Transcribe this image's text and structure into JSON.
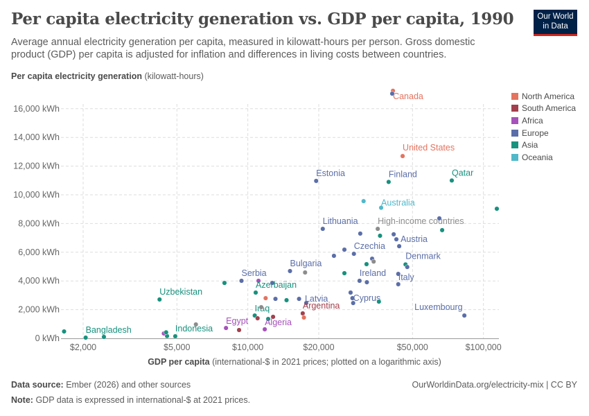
{
  "header": {
    "title": "Per capita electricity generation vs. GDP per capita, 1990",
    "subtitle": "Average annual electricity generation per capita, measured in kilowatt-hours per person. Gross domestic product (GDP) per capita is adjusted for inflation and differences in living costs between countries.",
    "logo": "Our World in Data"
  },
  "footer": {
    "source_label": "Data source:",
    "source": "Ember (2026) and other sources",
    "url": "OurWorldinData.org/electricity-mix | CC BY",
    "note_label": "Note:",
    "note": "GDP data is expressed in international-$ at 2021 prices."
  },
  "colors": {
    "North America": "#e4735f",
    "South America": "#a2404d",
    "Africa": "#a652ba",
    "Europe": "#5b6ea8",
    "Asia": "#18917e",
    "Oceania": "#50b8c9",
    "Other": "#8c8c8c"
  },
  "chart_data": {
    "type": "scatter",
    "title": "Per capita electricity generation vs. GDP per capita, 1990",
    "ylabel_bold": "Per capita electricity generation",
    "ylabel_unit": "(kilowatt-hours)",
    "xlabel_bold": "GDP per capita",
    "xlabel_unit": "(international-$ in 2021 prices; plotted on a logarithmic axis)",
    "xscale": "log",
    "xlim": [
      1500,
      120000
    ],
    "ylim": [
      0,
      17000
    ],
    "grid": true,
    "legend_position": "right",
    "xticks": [
      {
        "v": 2000,
        "label": "$2,000"
      },
      {
        "v": 5000,
        "label": "$5,000"
      },
      {
        "v": 10000,
        "label": "$10,000"
      },
      {
        "v": 20000,
        "label": "$20,000"
      },
      {
        "v": 50000,
        "label": "$50,000"
      },
      {
        "v": 100000,
        "label": "$100,000"
      }
    ],
    "yticks": [
      {
        "v": 0,
        "label": "0 kWh"
      },
      {
        "v": 2000,
        "label": "2,000 kWh"
      },
      {
        "v": 4000,
        "label": "4,000 kWh"
      },
      {
        "v": 6000,
        "label": "6,000 kWh"
      },
      {
        "v": 8000,
        "label": "8,000 kWh"
      },
      {
        "v": 10000,
        "label": "10,000 kWh"
      },
      {
        "v": 12000,
        "label": "12,000 kWh"
      },
      {
        "v": 14000,
        "label": "14,000 kWh"
      },
      {
        "v": 16000,
        "label": "16,000 kWh"
      }
    ],
    "legend": [
      "North America",
      "South America",
      "Africa",
      "Europe",
      "Asia",
      "Oceania"
    ],
    "points": [
      {
        "x": 41300,
        "y": 17250,
        "r": "North America",
        "label": "Canada"
      },
      {
        "x": 41000,
        "y": 17050,
        "r": "Europe"
      },
      {
        "x": 45400,
        "y": 12700,
        "r": "North America",
        "label": "United States"
      },
      {
        "x": 19500,
        "y": 10970,
        "r": "Europe",
        "label": "Estonia"
      },
      {
        "x": 39600,
        "y": 10900,
        "r": "Asia",
        "label": "Finland",
        "lc": "Europe"
      },
      {
        "x": 73400,
        "y": 11000,
        "r": "Asia",
        "label": "Qatar"
      },
      {
        "x": 114000,
        "y": 9030,
        "r": "Asia"
      },
      {
        "x": 36800,
        "y": 9100,
        "r": "Oceania",
        "label": "Australia"
      },
      {
        "x": 31000,
        "y": 9560,
        "r": "Oceania"
      },
      {
        "x": 20800,
        "y": 7630,
        "r": "Europe",
        "label": "Lithuania"
      },
      {
        "x": 35600,
        "y": 7630,
        "r": "Other",
        "label": "High-income countries"
      },
      {
        "x": 65000,
        "y": 8360,
        "r": "Europe"
      },
      {
        "x": 66800,
        "y": 7540,
        "r": "Asia"
      },
      {
        "x": 30000,
        "y": 7300,
        "r": "Europe"
      },
      {
        "x": 36400,
        "y": 7150,
        "r": "Asia"
      },
      {
        "x": 41600,
        "y": 7250,
        "r": "Europe"
      },
      {
        "x": 42700,
        "y": 6900,
        "r": "Europe"
      },
      {
        "x": 43900,
        "y": 6420,
        "r": "Europe",
        "label": "Austria"
      },
      {
        "x": 28200,
        "y": 5890,
        "r": "Europe",
        "label": "Czechia"
      },
      {
        "x": 25700,
        "y": 6180,
        "r": "Europe"
      },
      {
        "x": 23200,
        "y": 5750,
        "r": "Europe"
      },
      {
        "x": 33700,
        "y": 5550,
        "r": "Europe"
      },
      {
        "x": 34200,
        "y": 5350,
        "r": "Other"
      },
      {
        "x": 31900,
        "y": 5170,
        "r": "Asia"
      },
      {
        "x": 46700,
        "y": 5150,
        "r": "Asia",
        "label": "Denmark",
        "lc": "Europe"
      },
      {
        "x": 47500,
        "y": 4970,
        "r": "Europe"
      },
      {
        "x": 43500,
        "y": 4490,
        "r": "Europe"
      },
      {
        "x": 15100,
        "y": 4690,
        "r": "Europe",
        "label": "Bulgaria"
      },
      {
        "x": 17500,
        "y": 4590,
        "r": "Other"
      },
      {
        "x": 25700,
        "y": 4540,
        "r": "Asia"
      },
      {
        "x": 29800,
        "y": 4010,
        "r": "Europe",
        "label": "Ireland"
      },
      {
        "x": 32000,
        "y": 3910,
        "r": "Europe"
      },
      {
        "x": 43500,
        "y": 3770,
        "r": "Europe",
        "label": "Italy"
      },
      {
        "x": 9400,
        "y": 4010,
        "r": "Europe",
        "label": "Serbia"
      },
      {
        "x": 11100,
        "y": 4010,
        "r": "Africa"
      },
      {
        "x": 12700,
        "y": 3860,
        "r": "Europe"
      },
      {
        "x": 7960,
        "y": 3860,
        "r": "Asia"
      },
      {
        "x": 10800,
        "y": 3190,
        "r": "Asia",
        "label": "Azerbaijan"
      },
      {
        "x": 4220,
        "y": 2710,
        "r": "Asia",
        "label": "Uzbekistan"
      },
      {
        "x": 11900,
        "y": 2800,
        "r": "North America"
      },
      {
        "x": 13100,
        "y": 2750,
        "r": "Europe"
      },
      {
        "x": 14600,
        "y": 2660,
        "r": "Asia"
      },
      {
        "x": 16500,
        "y": 2750,
        "r": "Europe"
      },
      {
        "x": 17700,
        "y": 2460,
        "r": "Europe",
        "label": "Latvia"
      },
      {
        "x": 27300,
        "y": 3190,
        "r": "Europe"
      },
      {
        "x": 27800,
        "y": 2800,
        "r": "Europe"
      },
      {
        "x": 28000,
        "y": 2460,
        "r": "Europe",
        "label": "Cyprus"
      },
      {
        "x": 36000,
        "y": 2560,
        "r": "Asia"
      },
      {
        "x": 83000,
        "y": 1590,
        "r": "Europe",
        "label": "Luxembourg"
      },
      {
        "x": 10700,
        "y": 1590,
        "r": "Asia",
        "label": "Iraq"
      },
      {
        "x": 11400,
        "y": 2170,
        "r": "Other"
      },
      {
        "x": 11000,
        "y": 1400,
        "r": "South America"
      },
      {
        "x": 12800,
        "y": 1500,
        "r": "South America"
      },
      {
        "x": 12200,
        "y": 1350,
        "r": "Asia"
      },
      {
        "x": 17100,
        "y": 1740,
        "r": "South America",
        "label": "Argentina"
      },
      {
        "x": 17300,
        "y": 1450,
        "r": "North America"
      },
      {
        "x": 8080,
        "y": 720,
        "r": "Africa",
        "label": "Egypt"
      },
      {
        "x": 9180,
        "y": 580,
        "r": "South America"
      },
      {
        "x": 11800,
        "y": 630,
        "r": "Africa",
        "label": "Algeria"
      },
      {
        "x": 6020,
        "y": 970,
        "r": "Other"
      },
      {
        "x": 4920,
        "y": 145,
        "r": "Asia",
        "label": "Indonesia"
      },
      {
        "x": 4540,
        "y": 160,
        "r": "Asia"
      },
      {
        "x": 4400,
        "y": 340,
        "r": "Africa"
      },
      {
        "x": 4500,
        "y": 420,
        "r": "Asia"
      },
      {
        "x": 2050,
        "y": 50,
        "r": "Asia",
        "label": "Bangladesh"
      },
      {
        "x": 1660,
        "y": 480,
        "r": "Asia"
      },
      {
        "x": 2450,
        "y": 100,
        "r": "Asia"
      }
    ]
  }
}
